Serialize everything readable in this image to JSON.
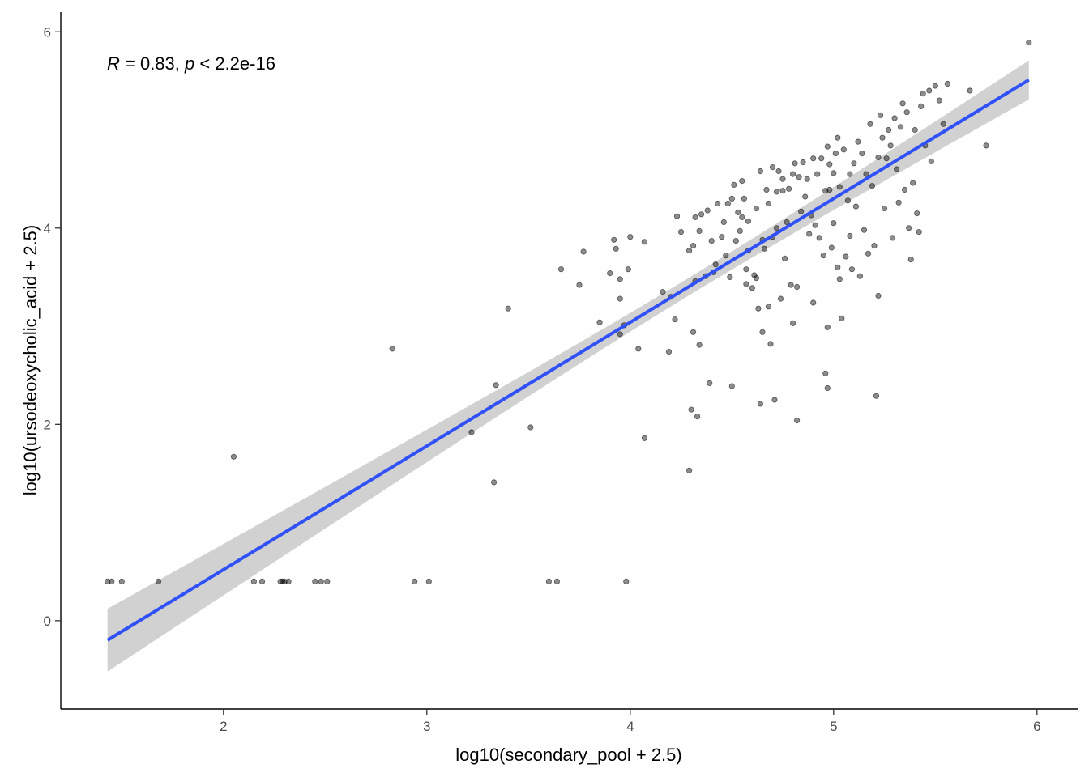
{
  "chart_data": {
    "type": "scatter",
    "title": "",
    "xlabel": "log10(secondary_pool + 2.5)",
    "ylabel": "log10(ursodeoxycholic_acid + 2.5)",
    "xlim": [
      1.2,
      6.2
    ],
    "ylim": [
      -0.9,
      6.2
    ],
    "x_ticks": [
      2,
      3,
      4,
      5,
      6
    ],
    "y_ticks": [
      0,
      2,
      4,
      6
    ],
    "x_tick_labels": [
      "2",
      "3",
      "4",
      "5",
      "6"
    ],
    "y_tick_labels": [
      "0",
      "2",
      "4",
      "6"
    ],
    "grid": false,
    "annotation": {
      "r_symbol": "R",
      "r_text": " = 0.83, ",
      "p_symbol": "p",
      "p_text": " < 2.2e-16"
    },
    "colors": {
      "points": "#000000",
      "fit_line": "#3050f8",
      "ci_band": "#bdbdbd"
    },
    "fit": {
      "x_range": [
        1.43,
        5.96
      ],
      "intercept": -2.0,
      "slope": 1.26,
      "ci_half_width_ends": 0.32,
      "ci_half_width_center": 0.09,
      "ci_center_x": 4.3
    },
    "series": [
      {
        "points": [
          [
            1.43,
            0.4
          ],
          [
            1.45,
            0.4
          ],
          [
            1.5,
            0.4
          ],
          [
            1.68,
            0.4
          ],
          [
            2.15,
            0.4
          ],
          [
            2.19,
            0.4
          ],
          [
            2.28,
            0.4
          ],
          [
            2.29,
            0.4
          ],
          [
            2.3,
            0.4
          ],
          [
            2.32,
            0.4
          ],
          [
            2.45,
            0.4
          ],
          [
            2.48,
            0.4
          ],
          [
            2.51,
            0.4
          ],
          [
            2.94,
            0.4
          ],
          [
            3.01,
            0.4
          ],
          [
            3.6,
            0.4
          ],
          [
            3.64,
            0.4
          ],
          [
            3.98,
            0.4
          ],
          [
            2.05,
            1.67
          ],
          [
            2.83,
            2.77
          ],
          [
            3.22,
            1.92
          ],
          [
            3.33,
            1.41
          ],
          [
            3.34,
            2.4
          ],
          [
            3.4,
            3.18
          ],
          [
            3.51,
            1.97
          ],
          [
            3.66,
            3.58
          ],
          [
            3.75,
            3.42
          ],
          [
            3.77,
            3.76
          ],
          [
            3.85,
            3.04
          ],
          [
            3.9,
            3.54
          ],
          [
            3.92,
            3.88
          ],
          [
            3.93,
            3.79
          ],
          [
            3.95,
            2.92
          ],
          [
            3.95,
            3.28
          ],
          [
            3.95,
            3.48
          ],
          [
            3.97,
            3.01
          ],
          [
            3.99,
            3.58
          ],
          [
            4.0,
            3.91
          ],
          [
            4.04,
            2.77
          ],
          [
            4.07,
            1.86
          ],
          [
            4.07,
            3.86
          ],
          [
            4.16,
            3.35
          ],
          [
            4.19,
            2.74
          ],
          [
            4.2,
            3.3
          ],
          [
            4.22,
            3.07
          ],
          [
            4.23,
            4.12
          ],
          [
            4.25,
            3.96
          ],
          [
            4.29,
            1.53
          ],
          [
            4.29,
            3.77
          ],
          [
            4.3,
            2.15
          ],
          [
            4.31,
            2.94
          ],
          [
            4.31,
            3.82
          ],
          [
            4.32,
            3.46
          ],
          [
            4.32,
            4.11
          ],
          [
            4.33,
            2.08
          ],
          [
            4.34,
            2.81
          ],
          [
            4.34,
            3.97
          ],
          [
            4.35,
            4.14
          ],
          [
            4.37,
            3.51
          ],
          [
            4.38,
            4.18
          ],
          [
            4.39,
            2.42
          ],
          [
            4.4,
            3.87
          ],
          [
            4.41,
            3.55
          ],
          [
            4.42,
            3.63
          ],
          [
            4.43,
            4.25
          ],
          [
            4.45,
            3.91
          ],
          [
            4.46,
            4.06
          ],
          [
            4.47,
            3.72
          ],
          [
            4.48,
            4.25
          ],
          [
            4.49,
            3.5
          ],
          [
            4.5,
            2.39
          ],
          [
            4.5,
            4.3
          ],
          [
            4.51,
            4.44
          ],
          [
            4.52,
            3.87
          ],
          [
            4.53,
            4.16
          ],
          [
            4.54,
            3.97
          ],
          [
            4.55,
            4.11
          ],
          [
            4.55,
            4.48
          ],
          [
            4.56,
            4.3
          ],
          [
            4.57,
            3.43
          ],
          [
            4.57,
            3.58
          ],
          [
            4.58,
            3.77
          ],
          [
            4.58,
            4.07
          ],
          [
            4.6,
            3.39
          ],
          [
            4.61,
            3.52
          ],
          [
            4.62,
            3.49
          ],
          [
            4.62,
            4.2
          ],
          [
            4.63,
            3.18
          ],
          [
            4.64,
            2.21
          ],
          [
            4.64,
            4.58
          ],
          [
            4.65,
            2.94
          ],
          [
            4.65,
            3.88
          ],
          [
            4.66,
            3.79
          ],
          [
            4.67,
            4.39
          ],
          [
            4.68,
            3.2
          ],
          [
            4.68,
            4.25
          ],
          [
            4.69,
            2.82
          ],
          [
            4.7,
            3.91
          ],
          [
            4.7,
            4.62
          ],
          [
            4.71,
            2.25
          ],
          [
            4.72,
            4.0
          ],
          [
            4.72,
            4.37
          ],
          [
            4.73,
            4.58
          ],
          [
            4.74,
            3.28
          ],
          [
            4.75,
            4.38
          ],
          [
            4.75,
            4.5
          ],
          [
            4.76,
            3.69
          ],
          [
            4.77,
            4.06
          ],
          [
            4.78,
            4.4
          ],
          [
            4.79,
            3.42
          ],
          [
            4.8,
            3.03
          ],
          [
            4.8,
            4.55
          ],
          [
            4.81,
            4.66
          ],
          [
            4.82,
            2.04
          ],
          [
            4.82,
            3.4
          ],
          [
            4.83,
            4.52
          ],
          [
            4.84,
            4.17
          ],
          [
            4.85,
            4.67
          ],
          [
            4.86,
            4.32
          ],
          [
            4.87,
            4.5
          ],
          [
            4.88,
            3.94
          ],
          [
            4.89,
            4.13
          ],
          [
            4.9,
            4.71
          ],
          [
            4.9,
            3.24
          ],
          [
            4.91,
            4.03
          ],
          [
            4.92,
            4.55
          ],
          [
            4.93,
            3.9
          ],
          [
            4.94,
            4.71
          ],
          [
            4.95,
            3.72
          ],
          [
            4.96,
            4.38
          ],
          [
            4.96,
            2.52
          ],
          [
            4.97,
            4.83
          ],
          [
            4.97,
            2.37
          ],
          [
            4.97,
            2.99
          ],
          [
            4.98,
            4.39
          ],
          [
            4.98,
            4.65
          ],
          [
            4.99,
            3.8
          ],
          [
            5.0,
            4.05
          ],
          [
            5.0,
            4.56
          ],
          [
            5.01,
            4.76
          ],
          [
            5.02,
            3.6
          ],
          [
            5.02,
            4.92
          ],
          [
            5.03,
            3.48
          ],
          [
            5.03,
            4.42
          ],
          [
            5.04,
            3.08
          ],
          [
            5.05,
            4.8
          ],
          [
            5.06,
            3.71
          ],
          [
            5.07,
            4.28
          ],
          [
            5.08,
            4.55
          ],
          [
            5.08,
            3.92
          ],
          [
            5.09,
            3.58
          ],
          [
            5.1,
            4.66
          ],
          [
            5.11,
            4.22
          ],
          [
            5.12,
            4.88
          ],
          [
            5.13,
            3.51
          ],
          [
            5.14,
            4.76
          ],
          [
            5.15,
            3.98
          ],
          [
            5.16,
            4.55
          ],
          [
            5.17,
            3.74
          ],
          [
            5.18,
            5.06
          ],
          [
            5.19,
            4.43
          ],
          [
            5.2,
            3.82
          ],
          [
            5.21,
            2.29
          ],
          [
            5.22,
            4.72
          ],
          [
            5.22,
            3.31
          ],
          [
            5.23,
            5.15
          ],
          [
            5.24,
            4.92
          ],
          [
            5.25,
            4.2
          ],
          [
            5.26,
            4.71
          ],
          [
            5.27,
            5.0
          ],
          [
            5.28,
            4.84
          ],
          [
            5.29,
            3.9
          ],
          [
            5.3,
            5.12
          ],
          [
            5.31,
            4.6
          ],
          [
            5.32,
            4.26
          ],
          [
            5.33,
            5.03
          ],
          [
            5.34,
            5.27
          ],
          [
            5.35,
            4.39
          ],
          [
            5.36,
            5.18
          ],
          [
            5.37,
            4.0
          ],
          [
            5.38,
            3.68
          ],
          [
            5.39,
            4.46
          ],
          [
            5.4,
            5.0
          ],
          [
            5.41,
            4.15
          ],
          [
            5.42,
            3.96
          ],
          [
            5.43,
            5.24
          ],
          [
            5.44,
            5.37
          ],
          [
            5.45,
            4.84
          ],
          [
            5.47,
            5.4
          ],
          [
            5.48,
            4.68
          ],
          [
            5.5,
            5.45
          ],
          [
            5.52,
            5.3
          ],
          [
            5.54,
            5.06
          ],
          [
            5.56,
            5.47
          ],
          [
            5.67,
            5.4
          ],
          [
            5.75,
            4.84
          ],
          [
            5.96,
            5.89
          ]
        ]
      }
    ]
  }
}
